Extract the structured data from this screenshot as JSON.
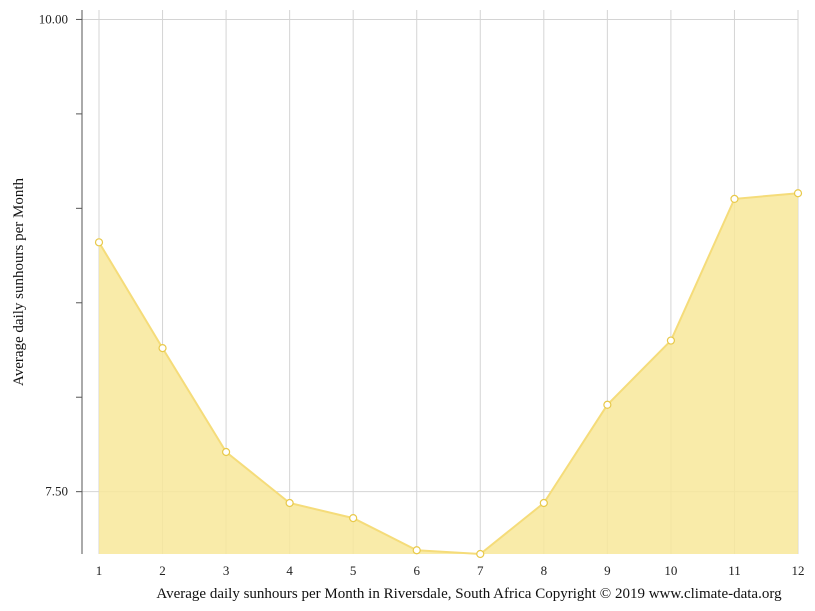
{
  "chart_data": {
    "type": "area",
    "categories": [
      "1",
      "2",
      "3",
      "4",
      "5",
      "6",
      "7",
      "8",
      "9",
      "10",
      "11",
      "12"
    ],
    "x": [
      1,
      2,
      3,
      4,
      5,
      6,
      7,
      8,
      9,
      10,
      11,
      12
    ],
    "series": [
      {
        "values": [
          8.82,
          8.26,
          7.71,
          7.44,
          7.36,
          7.19,
          7.17,
          7.44,
          7.96,
          8.3,
          9.05,
          9.08
        ]
      }
    ],
    "title": "",
    "xlabel": "Average daily sunhours per Month in Riversdale, South Africa Copyright © 2019 www.climate-data.org",
    "ylabel": "Average daily sunhours per Month",
    "yticks": [
      {
        "value": 7.5,
        "label": "7.50"
      },
      {
        "value": 10.0,
        "label": "10.00"
      }
    ],
    "ylim": [
      7.17,
      10.05
    ],
    "grid": true,
    "colors": {
      "fill": "#f8e79a",
      "line": "#f5dc7a",
      "marker_stroke": "#e8c94a",
      "grid": "#d4d4d4",
      "axis": "#555555"
    }
  }
}
